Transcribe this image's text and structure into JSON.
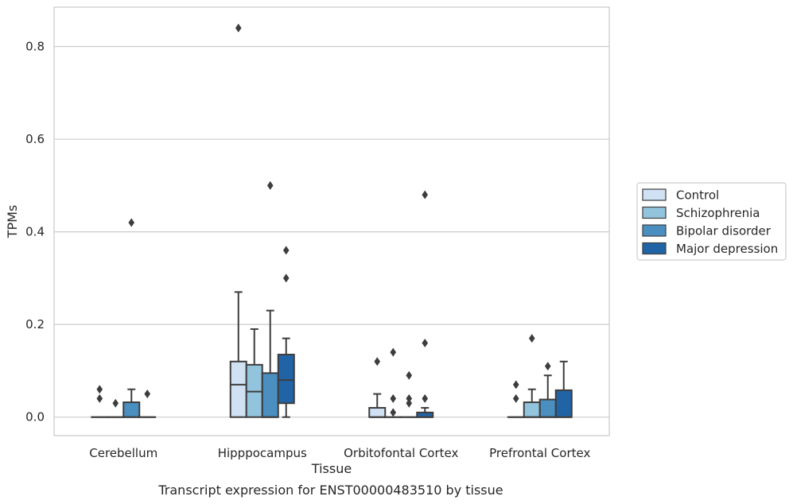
{
  "caption": "Transcript expression for ENST00000483510 by tissue",
  "chart_data": {
    "type": "box",
    "title": "",
    "xlabel": "Tissue",
    "ylabel": "TPMs",
    "ylim": [
      -0.04,
      0.885
    ],
    "yticks": [
      0.0,
      0.2,
      0.4,
      0.6,
      0.8
    ],
    "ytick_labels": [
      "0.0",
      "0.2",
      "0.4",
      "0.6",
      "0.8"
    ],
    "grid": "horizontal",
    "legend_position": "right",
    "categories": [
      "Cerebellum",
      "Hipppocampus",
      "Orbitofontal Cortex",
      "Prefrontal Cortex"
    ],
    "series": [
      {
        "name": "Control",
        "color": "#cfe1f2",
        "boxes": [
          {
            "q1": 0,
            "median": 0,
            "q3": 0,
            "whisker_low": 0,
            "whisker_high": 0,
            "outliers": [
              0.06,
              0.04
            ]
          },
          {
            "q1": 0,
            "median": 0.07,
            "q3": 0.12,
            "whisker_low": 0,
            "whisker_high": 0.27,
            "outliers": [
              0.84
            ]
          },
          {
            "q1": 0,
            "median": 0,
            "q3": 0.02,
            "whisker_low": 0,
            "whisker_high": 0.05,
            "outliers": [
              0.12
            ]
          },
          {
            "q1": 0,
            "median": 0,
            "q3": 0,
            "whisker_low": 0,
            "whisker_high": 0,
            "outliers": [
              0.07,
              0.04
            ]
          }
        ]
      },
      {
        "name": "Schizophrenia",
        "color": "#93c4de",
        "boxes": [
          {
            "q1": 0,
            "median": 0,
            "q3": 0,
            "whisker_low": 0,
            "whisker_high": 0,
            "outliers": [
              0.03
            ]
          },
          {
            "q1": 0,
            "median": 0.055,
            "q3": 0.113,
            "whisker_low": 0,
            "whisker_high": 0.19,
            "outliers": []
          },
          {
            "q1": 0,
            "median": 0,
            "q3": 0,
            "whisker_low": 0,
            "whisker_high": 0,
            "outliers": [
              0.14,
              0.04,
              0.01
            ]
          },
          {
            "q1": 0,
            "median": 0,
            "q3": 0.032,
            "whisker_low": 0,
            "whisker_high": 0.06,
            "outliers": [
              0.17
            ]
          }
        ]
      },
      {
        "name": "Bipolar disorder",
        "color": "#4a8fc0",
        "boxes": [
          {
            "q1": 0,
            "median": 0,
            "q3": 0.032,
            "whisker_low": 0,
            "whisker_high": 0.06,
            "outliers": [
              0.42
            ]
          },
          {
            "q1": 0,
            "median": 0,
            "q3": 0.095,
            "whisker_low": 0,
            "whisker_high": 0.23,
            "outliers": [
              0.5
            ]
          },
          {
            "q1": 0,
            "median": 0,
            "q3": 0,
            "whisker_low": 0,
            "whisker_high": 0,
            "outliers": [
              0.09,
              0.04,
              0.03
            ]
          },
          {
            "q1": 0,
            "median": 0,
            "q3": 0.038,
            "whisker_low": 0,
            "whisker_high": 0.09,
            "outliers": [
              0.11
            ]
          }
        ]
      },
      {
        "name": "Major depression",
        "color": "#2164a6",
        "boxes": [
          {
            "q1": 0,
            "median": 0,
            "q3": 0,
            "whisker_low": 0,
            "whisker_high": 0,
            "outliers": [
              0.05
            ]
          },
          {
            "q1": 0.03,
            "median": 0.08,
            "q3": 0.135,
            "whisker_low": 0,
            "whisker_high": 0.17,
            "outliers": [
              0.36,
              0.3
            ]
          },
          {
            "q1": 0,
            "median": 0,
            "q3": 0.01,
            "whisker_low": 0,
            "whisker_high": 0.02,
            "outliers": [
              0.48,
              0.16,
              0.04
            ]
          },
          {
            "q1": 0,
            "median": 0,
            "q3": 0.058,
            "whisker_low": 0,
            "whisker_high": 0.12,
            "outliers": []
          }
        ]
      }
    ]
  }
}
